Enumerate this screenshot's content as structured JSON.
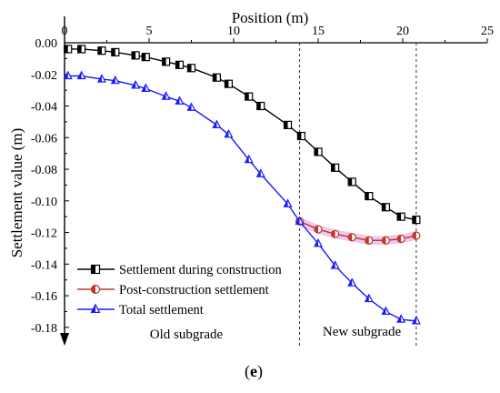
{
  "chart_data": {
    "type": "line",
    "panel_label_open": "(",
    "panel_label_letter": "e",
    "panel_label_close": ")",
    "xlabel": "Position (m)",
    "ylabel": "Settlement value (m)",
    "xlim": [
      0,
      25
    ],
    "ylim": [
      -0.187,
      0.0
    ],
    "x_axis_position": "top",
    "x_ticks": [
      0,
      5,
      10,
      15,
      20,
      25
    ],
    "x_tick_labels": [
      "0",
      "5",
      "10",
      "15",
      "20",
      "25"
    ],
    "y_ticks": [
      0.0,
      -0.02,
      -0.04,
      -0.06,
      -0.08,
      -0.1,
      -0.12,
      -0.14,
      -0.16,
      -0.18
    ],
    "y_tick_labels": [
      "0.00",
      "-0.02",
      "-0.04",
      "-0.06",
      "-0.08",
      "-0.10",
      "-0.12",
      "-0.14",
      "-0.16",
      "-0.18"
    ],
    "grid": false,
    "legend_position": "bottom-left",
    "series": [
      {
        "name": "Settlement during construction",
        "color": "#000000",
        "marker": "half-filled-square",
        "x": [
          0.2,
          1.0,
          2.2,
          3.0,
          4.2,
          4.8,
          6.0,
          6.8,
          7.5,
          9.0,
          9.7,
          10.9,
          11.6,
          13.2,
          14.0,
          15.0,
          16.0,
          17.0,
          18.0,
          19.0,
          19.9,
          20.8
        ],
        "y": [
          -0.004,
          -0.004,
          -0.005,
          -0.006,
          -0.008,
          -0.009,
          -0.012,
          -0.014,
          -0.016,
          -0.022,
          -0.026,
          -0.034,
          -0.04,
          -0.052,
          -0.059,
          -0.069,
          -0.079,
          -0.088,
          -0.097,
          -0.104,
          -0.11,
          -0.112
        ]
      },
      {
        "name": "Post-construction settlement",
        "color": "#c0392b",
        "marker": "half-filled-circle",
        "x": [
          13.9,
          15.0,
          16.0,
          17.0,
          18.0,
          19.0,
          19.9,
          20.8
        ],
        "y": [
          -0.113,
          -0.118,
          -0.121,
          -0.123,
          -0.125,
          -0.125,
          -0.124,
          -0.122
        ]
      },
      {
        "name": "Total settlement",
        "color": "#1a1aff",
        "marker": "half-filled-triangle",
        "x": [
          0.2,
          1.0,
          2.2,
          3.0,
          4.2,
          4.8,
          6.0,
          6.8,
          7.5,
          9.0,
          9.7,
          10.9,
          11.6,
          13.2,
          13.9,
          15.0,
          16.0,
          17.0,
          18.0,
          19.0,
          19.9,
          20.8
        ],
        "y": [
          -0.021,
          -0.021,
          -0.023,
          -0.024,
          -0.027,
          -0.029,
          -0.034,
          -0.037,
          -0.041,
          -0.052,
          -0.058,
          -0.074,
          -0.083,
          -0.102,
          -0.113,
          -0.127,
          -0.141,
          -0.152,
          -0.162,
          -0.17,
          -0.175,
          -0.176
        ]
      }
    ],
    "reference_lines": [
      {
        "axis": "x",
        "value": 13.9,
        "style": "dashed"
      },
      {
        "axis": "x",
        "value": 20.8,
        "style": "dashed"
      }
    ],
    "regions": [
      {
        "label": "Old subgrade"
      },
      {
        "label": "New subgrade"
      }
    ],
    "post_construction_band_color": "#e8b4e8"
  }
}
